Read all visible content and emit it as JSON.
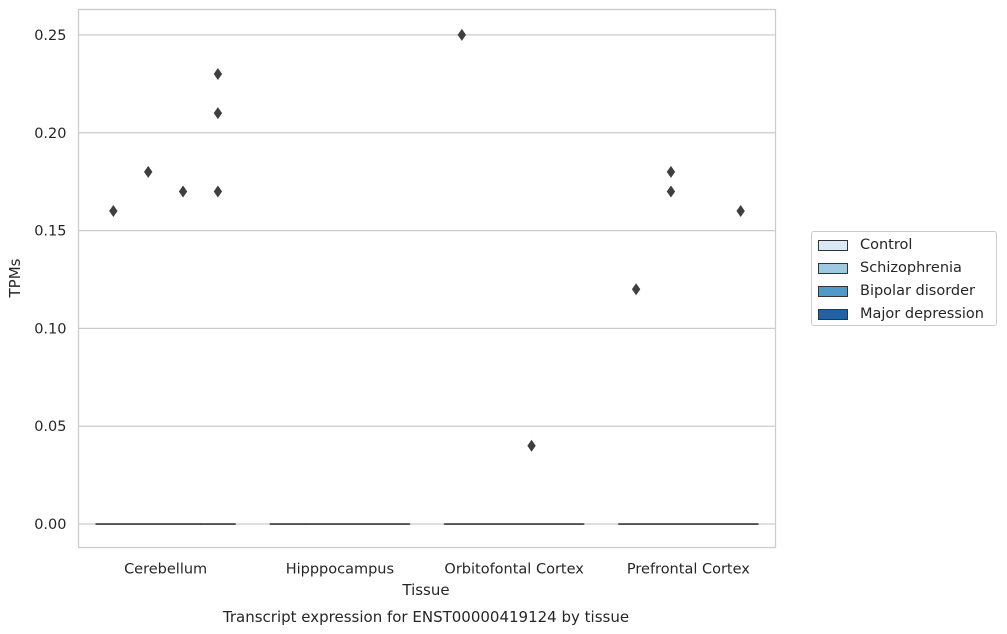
{
  "chart_data": {
    "type": "box",
    "title": "",
    "caption": "Transcript expression for ENST00000419124 by tissue",
    "xlabel": "Tissue",
    "ylabel": "TPMs",
    "ylim": [
      -0.012,
      0.263
    ],
    "yticks": [
      "0.00",
      "0.05",
      "0.10",
      "0.15",
      "0.20",
      "0.25"
    ],
    "ytick_values": [
      0.0,
      0.05,
      0.1,
      0.15,
      0.2,
      0.25
    ],
    "grid": true,
    "legend_position": "right",
    "categories": [
      "Cerebellum",
      "Hipppocampus",
      "Orbitofontal Cortex",
      "Prefrontal Cortex"
    ],
    "series": [
      {
        "name": "Control",
        "color": "#dbe9f6",
        "boxes": [
          {
            "median": 0,
            "q1": 0,
            "q3": 0,
            "outliers": [
              0.16
            ]
          },
          {
            "median": 0,
            "q1": 0,
            "q3": 0,
            "outliers": []
          },
          {
            "median": 0,
            "q1": 0,
            "q3": 0,
            "outliers": [
              0.25
            ]
          },
          {
            "median": 0,
            "q1": 0,
            "q3": 0,
            "outliers": [
              0.12
            ]
          }
        ]
      },
      {
        "name": "Schizophrenia",
        "color": "#9dc9e1",
        "boxes": [
          {
            "median": 0,
            "q1": 0,
            "q3": 0,
            "outliers": [
              0.18
            ]
          },
          {
            "median": 0,
            "q1": 0,
            "q3": 0,
            "outliers": []
          },
          {
            "median": 0,
            "q1": 0,
            "q3": 0,
            "outliers": []
          },
          {
            "median": 0,
            "q1": 0,
            "q3": 0,
            "outliers": [
              0.18,
              0.17
            ]
          }
        ]
      },
      {
        "name": "Bipolar disorder",
        "color": "#4f9ac9",
        "boxes": [
          {
            "median": 0,
            "q1": 0,
            "q3": 0,
            "outliers": [
              0.17
            ]
          },
          {
            "median": 0,
            "q1": 0,
            "q3": 0,
            "outliers": []
          },
          {
            "median": 0,
            "q1": 0,
            "q3": 0,
            "outliers": [
              0.04
            ]
          },
          {
            "median": 0,
            "q1": 0,
            "q3": 0,
            "outliers": []
          }
        ]
      },
      {
        "name": "Major depression",
        "color": "#1f62a5",
        "boxes": [
          {
            "median": 0,
            "q1": 0,
            "q3": 0,
            "outliers": [
              0.23,
              0.21,
              0.17
            ]
          },
          {
            "median": 0,
            "q1": 0,
            "q3": 0,
            "outliers": []
          },
          {
            "median": 0,
            "q1": 0,
            "q3": 0,
            "outliers": []
          },
          {
            "median": 0,
            "q1": 0,
            "q3": 0,
            "outliers": [
              0.16
            ]
          }
        ]
      }
    ]
  }
}
